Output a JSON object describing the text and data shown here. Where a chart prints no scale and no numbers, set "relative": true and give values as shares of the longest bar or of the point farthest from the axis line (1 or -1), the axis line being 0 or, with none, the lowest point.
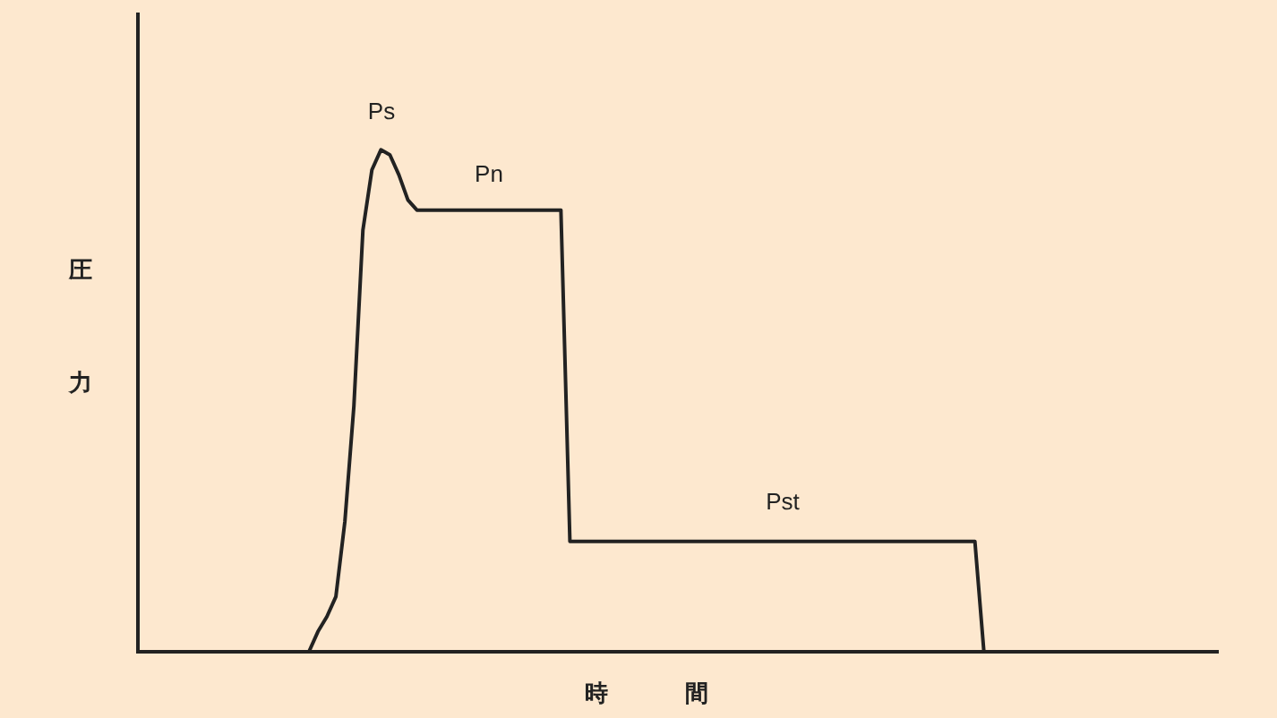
{
  "chart_data": {
    "type": "line",
    "relative": true,
    "xlabel": "時間",
    "ylabel": "圧力",
    "annotations": [
      "Ps",
      "Pn",
      "Pst"
    ],
    "categories": [
      null,
      null,
      null,
      null,
      null,
      null,
      null,
      null,
      null,
      null,
      null,
      null,
      null,
      null,
      null,
      null,
      null,
      null,
      null,
      null,
      null,
      null,
      null,
      null,
      null,
      null,
      null,
      null,
      null,
      null,
      null,
      null,
      null,
      null,
      null,
      null,
      null,
      null,
      null,
      null,
      null,
      null,
      null,
      null,
      null,
      null,
      null,
      null,
      null,
      null,
      null,
      null,
      null,
      null,
      null,
      null,
      null,
      null,
      null,
      null,
      null,
      null,
      null,
      null,
      null,
      null,
      null,
      null,
      null,
      null,
      null,
      null,
      null,
      null,
      null,
      null,
      null,
      null,
      null,
      null,
      null,
      null,
      null,
      null,
      null,
      null,
      null,
      null,
      null,
      null,
      null,
      null,
      null,
      null,
      null,
      null,
      null,
      null,
      null,
      null,
      null,
      null,
      null,
      null,
      null,
      null,
      null,
      null,
      null,
      null,
      null,
      null,
      null,
      null,
      null,
      null,
      null,
      null,
      null,
      null,
      null
    ],
    "series": [
      {
        "color": "#222222",
        "values": [
          null,
          null,
          null,
          null,
          null,
          null,
          null,
          null,
          null,
          null,
          null,
          null,
          null,
          null,
          null,
          null,
          null,
          null,
          null,
          0,
          0.04,
          0.07,
          0.11,
          0.26,
          0.49,
          0.84,
          0.96,
          1,
          0.99,
          0.95,
          0.9,
          0.88,
          0.88,
          0.88,
          0.88,
          0.88,
          0.88,
          0.88,
          0.88,
          0.88,
          0.88,
          0.88,
          0.88,
          0.88,
          0.88,
          0.88,
          0.88,
          0.88,
          0.22,
          0.22,
          0.22,
          0.22,
          0.22,
          0.22,
          0.22,
          0.22,
          0.22,
          0.22,
          0.22,
          0.22,
          0.22,
          0.22,
          0.22,
          0.22,
          0.22,
          0.22,
          0.22,
          0.22,
          0.22,
          0.22,
          0.22,
          0.22,
          0.22,
          0.22,
          0.22,
          0.22,
          0.22,
          0.22,
          0.22,
          0.22,
          0.22,
          0.22,
          0.22,
          0.22,
          0.22,
          0.22,
          0.22,
          0.22,
          0.22,
          0.22,
          0.22,
          0.22,
          0.22,
          0.22,
          0,
          null,
          null,
          null,
          null,
          null,
          null,
          null,
          null,
          null,
          null,
          null,
          null,
          null,
          null,
          null,
          null,
          null,
          null,
          null,
          null,
          null,
          null,
          null,
          null,
          null,
          null
        ]
      }
    ]
  }
}
